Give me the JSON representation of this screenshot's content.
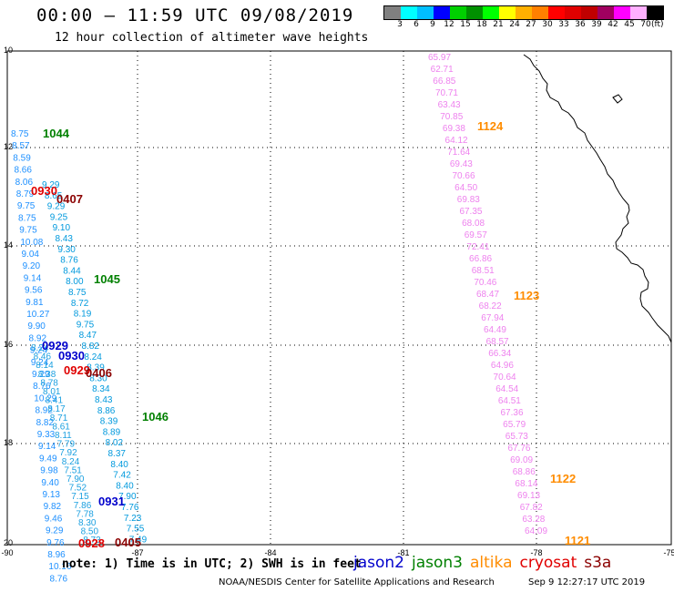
{
  "header": {
    "title": "00:00 – 11:59 UTC 09/08/2019",
    "subtitle": "12 hour collection of altimeter wave heights"
  },
  "colorbar": {
    "colors": [
      "#808080",
      "#00ffff",
      "#00bfff",
      "#0000ff",
      "#00d000",
      "#009000",
      "#00ff00",
      "#ffff00",
      "#ffb000",
      "#ff8000",
      "#ff0000",
      "#e00000",
      "#c00000",
      "#a00060",
      "#ff00ff",
      "#ffb0ff",
      "#000000"
    ],
    "labels": [
      "3",
      "6",
      "9",
      "12",
      "15",
      "18",
      "21",
      "24",
      "27",
      "30",
      "33",
      "36",
      "39",
      "42",
      "45",
      "70"
    ],
    "unit": "(ft)"
  },
  "map": {
    "lon_ticks": [
      "-90",
      "-87",
      "-84",
      "-81",
      "-78",
      "-75"
    ],
    "lat_ticks": [
      "10",
      "12",
      "14",
      "16",
      "18",
      "20"
    ]
  },
  "tracks": [
    {
      "id": "1044",
      "color": "#008000",
      "label_color": "#008000"
    },
    {
      "id": "1045",
      "color": "#008000",
      "label_color": "#008000"
    },
    {
      "id": "1046",
      "color": "#008000",
      "label_color": "#008000"
    },
    {
      "id": "1124",
      "color": "#ff8c00",
      "label_color": "#ff8c00"
    },
    {
      "id": "1123",
      "color": "#ff8c00",
      "label_color": "#ff8c00"
    },
    {
      "id": "1122",
      "color": "#ff8c00",
      "label_color": "#ff8c00"
    },
    {
      "id": "1121",
      "color": "#ff8c00",
      "label_color": "#ff8c00"
    },
    {
      "id": "0930",
      "color": "#e00000",
      "label_color": "#e00000"
    },
    {
      "id": "0407",
      "color": "#8b0000",
      "label_color": "#8b0000"
    },
    {
      "id": "0929",
      "color": "#0000cc",
      "label_color": "#0000cc"
    },
    {
      "id": "0930",
      "color": "#0000cc",
      "label_color": "#0000cc"
    },
    {
      "id": "0929",
      "color": "#e00000",
      "label_color": "#e00000"
    },
    {
      "id": "0406",
      "color": "#8b0000",
      "label_color": "#8b0000"
    },
    {
      "id": "0931",
      "color": "#0000cc",
      "label_color": "#0000cc"
    },
    {
      "id": "0928",
      "color": "#e00000",
      "label_color": "#e00000"
    },
    {
      "id": "0405",
      "color": "#8b0000",
      "label_color": "#8b0000"
    }
  ],
  "pink_values": [
    "65.97",
    "62.71",
    "66.85",
    "70.71",
    "63.43",
    "70.85",
    "69.38",
    "64.12",
    "71.64",
    "69.43",
    "70.66",
    "64.50",
    "69.83",
    "67.35",
    "68.08",
    "69.57",
    "72.41",
    "66.86",
    "68.51",
    "70.46",
    "68.47",
    "68.22",
    "67.94",
    "64.49",
    "68.57",
    "66.34",
    "64.96",
    "70.64",
    "64.54",
    "64.51",
    "67.36",
    "65.79",
    "65.73",
    "67.76",
    "69.09",
    "68.86",
    "68.14",
    "69.13",
    "67.82",
    "63.28",
    "64.09"
  ],
  "cyan_values": [
    "8.75",
    "8.57",
    "8.59",
    "8.66",
    "8.06",
    "8.79",
    "9.75",
    "8.75",
    "9.75",
    "10.08",
    "9.04",
    "9.20",
    "9.14",
    "9.56",
    "9.81",
    "10.27",
    "9.90",
    "8.92",
    "9.24",
    "9.24",
    "9.29",
    "8.76",
    "10.29",
    "8.92",
    "8.82",
    "9.33",
    "9.14",
    "9.49",
    "9.98",
    "9.40",
    "9.13",
    "9.82",
    "9.46",
    "9.29",
    "9.76",
    "8.96",
    "10.16",
    "8.76"
  ],
  "blue_values": [
    "9.29",
    "8.65",
    "9.29",
    "9.25",
    "9.10",
    "8.43",
    "9.30",
    "8.76",
    "8.44",
    "8.00",
    "8.75",
    "8.72",
    "8.19",
    "9.75",
    "8.47",
    "8.82",
    "8.24",
    "8.39",
    "8.30",
    "8.34",
    "8.43",
    "8.86",
    "8.39",
    "8.89",
    "8.02",
    "8.37",
    "8.40",
    "7.42",
    "8.40",
    "7.90",
    "7.76",
    "7.23",
    "7.55",
    "7.49"
  ],
  "mid_values": [
    "8.24",
    "8.46",
    "8.14",
    "8.38",
    "8.78",
    "8.01",
    "8.41",
    "8.17",
    "8.71",
    "8.61",
    "8.11",
    "7.79",
    "7.92",
    "8.24",
    "7.51",
    "7.90",
    "7.52",
    "7.15",
    "7.86",
    "7.78",
    "8.30",
    "8.50",
    "8.73"
  ],
  "footer": {
    "note": "note: 1) Time is in UTC; 2) SWH is in feet",
    "legend": [
      {
        "name": "jason2",
        "color": "#0000cc"
      },
      {
        "name": "jason3",
        "color": "#008000"
      },
      {
        "name": "altika",
        "color": "#ff8c00"
      },
      {
        "name": "cryosat",
        "color": "#e00000"
      },
      {
        "name": "s3a",
        "color": "#8b0000"
      }
    ],
    "credit": "NOAA/NESDIS Center for Satellite Applications and Research",
    "timestamp": "Sep  9 12:27:17 UTC 2019"
  }
}
